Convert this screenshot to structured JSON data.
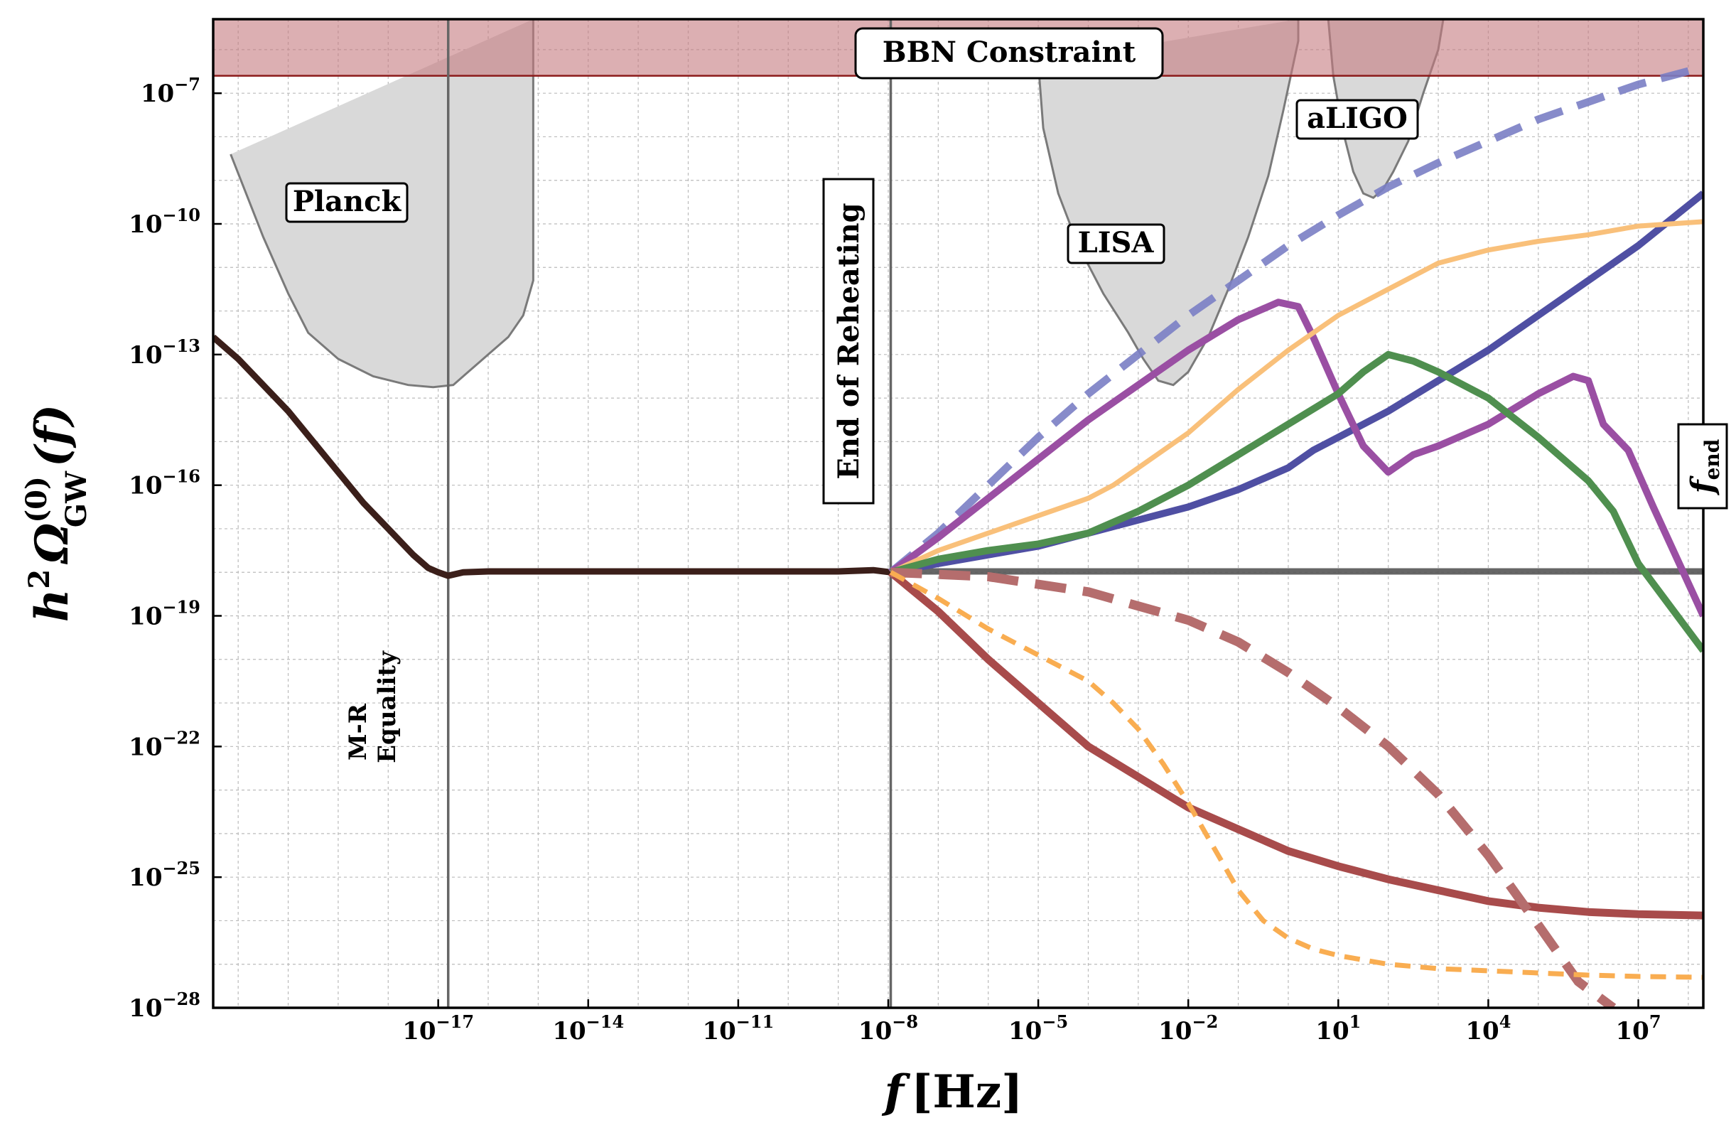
{
  "chart_data": {
    "type": "line",
    "title": "",
    "xlabel": "f [Hz]",
    "xlabel_parts": {
      "symbol": "f",
      "unit": "[Hz]"
    },
    "ylabel": "h² Ω_GW^(0)(f)",
    "ylabel_parts": {
      "h": "h",
      "h_exp": "2",
      "omega": "Ω",
      "sup": "(0)",
      "sub": "GW",
      "arg": "(f)"
    },
    "x_scale": "log10",
    "y_scale": "log10",
    "xlim_log10": [
      -21.5,
      8.3
    ],
    "ylim_log10": [
      -28,
      -5.3
    ],
    "grid": true,
    "x_ticks": [
      {
        "value": -17,
        "base": "10",
        "exp": "−17"
      },
      {
        "value": -14,
        "base": "10",
        "exp": "−14"
      },
      {
        "value": -11,
        "base": "10",
        "exp": "−11"
      },
      {
        "value": -8,
        "base": "10",
        "exp": "−8"
      },
      {
        "value": -5,
        "base": "10",
        "exp": "−5"
      },
      {
        "value": -2,
        "base": "10",
        "exp": "−2"
      },
      {
        "value": 1,
        "base": "10",
        "exp": "1"
      },
      {
        "value": 4,
        "base": "10",
        "exp": "4"
      },
      {
        "value": 7,
        "base": "10",
        "exp": "7"
      }
    ],
    "y_ticks": [
      {
        "value": -7,
        "base": "10",
        "exp": "−7"
      },
      {
        "value": -10,
        "base": "10",
        "exp": "−10"
      },
      {
        "value": -13,
        "base": "10",
        "exp": "−13"
      },
      {
        "value": -16,
        "base": "10",
        "exp": "−16"
      },
      {
        "value": -19,
        "base": "10",
        "exp": "−19"
      },
      {
        "value": -22,
        "base": "10",
        "exp": "−22"
      },
      {
        "value": -25,
        "base": "10",
        "exp": "−25"
      },
      {
        "value": -28,
        "base": "10",
        "exp": "−28"
      }
    ],
    "bbn": {
      "label": "BBN Constraint",
      "y_min_log10": -6.6,
      "fill": "#c47a7f",
      "edge": "#8b1a1a"
    },
    "vlines": [
      {
        "name": "M-R Equality",
        "x": -16.8
      },
      {
        "name": "End of Reheating",
        "x": -7.95
      }
    ],
    "sensitivity_regions": [
      {
        "name": "Planck",
        "x": [
          -21.15,
          -20.5,
          -20.0,
          -19.6,
          -19.0,
          -18.3,
          -17.6,
          -17.1,
          -16.7,
          -16.4,
          -16.0,
          -15.6,
          -15.3,
          -15.1,
          -15.1
        ],
        "y": [
          -8.4,
          -10.3,
          -11.6,
          -12.5,
          -13.1,
          -13.5,
          -13.7,
          -13.75,
          -13.7,
          -13.4,
          -13.0,
          -12.6,
          -12.1,
          -11.3,
          -5.3
        ]
      },
      {
        "name": "LISA",
        "x": [
          -5.0,
          -4.9,
          -4.6,
          -4.2,
          -3.7,
          -3.2,
          -2.9,
          -2.6,
          -2.3,
          -2.0,
          -1.6,
          -1.2,
          -0.8,
          -0.4,
          -0.1,
          0.2,
          0.2
        ],
        "y": [
          -6.3,
          -7.8,
          -9.3,
          -10.5,
          -11.6,
          -12.5,
          -13.1,
          -13.6,
          -13.7,
          -13.4,
          -12.6,
          -11.5,
          -10.3,
          -8.9,
          -7.4,
          -5.8,
          -5.3
        ]
      },
      {
        "name": "aLIGO",
        "x": [
          0.8,
          0.9,
          1.1,
          1.3,
          1.5,
          1.7,
          1.9,
          2.1,
          2.4,
          2.7,
          3.0,
          3.1
        ],
        "y": [
          -5.3,
          -6.6,
          -7.9,
          -8.8,
          -9.3,
          -9.4,
          -9.2,
          -8.8,
          -8.1,
          -7.0,
          -6.0,
          -5.3
        ]
      }
    ],
    "series": [
      {
        "name": "low-frequency common",
        "color": "#3b1f1a",
        "width": 9,
        "dash": "",
        "x": [
          -21.5,
          -21.0,
          -20.5,
          -20.0,
          -19.5,
          -19.0,
          -18.5,
          -18.0,
          -17.5,
          -17.2,
          -17.0,
          -16.8,
          -16.5,
          -16.0,
          -15.0,
          -12.0,
          -9.0,
          -8.3,
          -7.95
        ],
        "y": [
          -12.6,
          -13.1,
          -13.7,
          -14.3,
          -15.0,
          -15.7,
          -16.4,
          -17.0,
          -17.6,
          -17.9,
          -18.0,
          -18.08,
          -18.0,
          -17.98,
          -17.98,
          -17.98,
          -17.98,
          -17.95,
          -18.0
        ]
      },
      {
        "name": "dark grey flat",
        "color": "#555555",
        "width": 9,
        "dash": "",
        "x": [
          -7.95,
          8.3
        ],
        "y": [
          -17.98,
          -17.98
        ]
      },
      {
        "name": "blue dashed",
        "color": "#7a7ec4",
        "width": 11,
        "dash": "40,22",
        "x": [
          -7.95,
          -7.0,
          -6.0,
          -5.0,
          -4.0,
          -3.0,
          -2.0,
          -1.0,
          0.0,
          1.0,
          2.0,
          3.0,
          4.0,
          5.0,
          6.0,
          7.0,
          8.3
        ],
        "y": [
          -18.0,
          -17.1,
          -16.0,
          -14.9,
          -13.9,
          -13.0,
          -12.1,
          -11.3,
          -10.5,
          -9.8,
          -9.15,
          -8.6,
          -8.1,
          -7.6,
          -7.2,
          -6.8,
          -6.4
        ]
      },
      {
        "name": "blue solid",
        "color": "#4f4fa3",
        "width": 10,
        "dash": "",
        "x": [
          -7.95,
          -7.0,
          -6.0,
          -5.0,
          -4.0,
          -3.0,
          -2.0,
          -1.0,
          0.0,
          0.5,
          1.0,
          2.0,
          3.0,
          4.0,
          5.0,
          6.0,
          7.0,
          8.3
        ],
        "y": [
          -18.0,
          -17.8,
          -17.6,
          -17.4,
          -17.1,
          -16.8,
          -16.5,
          -16.1,
          -15.6,
          -15.2,
          -14.9,
          -14.3,
          -13.6,
          -12.9,
          -12.1,
          -11.3,
          -10.5,
          -9.3
        ]
      },
      {
        "name": "purple",
        "color": "#9a4fa3",
        "width": 10,
        "dash": "",
        "x": [
          -7.95,
          -7.0,
          -6.0,
          -5.0,
          -4.0,
          -3.0,
          -2.0,
          -1.0,
          -0.2,
          0.2,
          0.5,
          1.0,
          1.5,
          2.0,
          2.5,
          3.0,
          4.0,
          5.0,
          5.7,
          6.0,
          6.3,
          6.8,
          7.3,
          8.3
        ],
        "y": [
          -18.0,
          -17.2,
          -16.3,
          -15.4,
          -14.5,
          -13.7,
          -12.9,
          -12.2,
          -11.8,
          -11.9,
          -12.6,
          -13.9,
          -15.1,
          -15.7,
          -15.3,
          -15.1,
          -14.6,
          -13.9,
          -13.5,
          -13.6,
          -14.6,
          -15.2,
          -16.5,
          -19.0
        ]
      },
      {
        "name": "light orange solid",
        "color": "#f9c07a",
        "width": 7,
        "dash": "",
        "x": [
          -7.95,
          -7.0,
          -6.0,
          -5.0,
          -4.0,
          -3.5,
          -3.0,
          -2.0,
          -1.0,
          0.0,
          1.0,
          2.0,
          3.0,
          4.0,
          5.0,
          6.0,
          7.0,
          8.3
        ],
        "y": [
          -18.0,
          -17.5,
          -17.1,
          -16.7,
          -16.3,
          -16.0,
          -15.6,
          -14.8,
          -13.8,
          -12.9,
          -12.1,
          -11.5,
          -10.9,
          -10.6,
          -10.4,
          -10.25,
          -10.05,
          -9.95
        ]
      },
      {
        "name": "green",
        "color": "#4f8f4f",
        "width": 10,
        "dash": "",
        "x": [
          -7.95,
          -7.0,
          -6.0,
          -5.0,
          -4.0,
          -3.0,
          -2.0,
          -1.0,
          0.0,
          1.0,
          1.5,
          2.0,
          2.5,
          3.0,
          4.0,
          5.0,
          6.0,
          6.5,
          7.0,
          8.3
        ],
        "y": [
          -18.0,
          -17.7,
          -17.5,
          -17.35,
          -17.1,
          -16.6,
          -16.0,
          -15.3,
          -14.6,
          -13.9,
          -13.4,
          -13.0,
          -13.15,
          -13.4,
          -14.0,
          -14.9,
          -15.9,
          -16.6,
          -17.8,
          -19.8
        ]
      },
      {
        "name": "red solid",
        "color": "#a84b4b",
        "width": 11,
        "dash": "",
        "x": [
          -7.95,
          -7.0,
          -6.0,
          -5.0,
          -4.0,
          -3.0,
          -2.0,
          -1.0,
          0.0,
          1.0,
          2.0,
          3.0,
          4.0,
          5.0,
          6.0,
          7.0,
          8.3
        ],
        "y": [
          -18.0,
          -18.9,
          -20.0,
          -21.0,
          -22.0,
          -22.7,
          -23.4,
          -23.9,
          -24.4,
          -24.75,
          -25.05,
          -25.3,
          -25.55,
          -25.7,
          -25.8,
          -25.85,
          -25.88
        ]
      },
      {
        "name": "red dashed",
        "color": "#b56d6d",
        "width": 13,
        "dash": "44,24",
        "x": [
          -7.95,
          -6.0,
          -4.0,
          -2.0,
          -1.0,
          0.0,
          1.0,
          2.0,
          3.0,
          4.0,
          5.0,
          5.8,
          6.5
        ],
        "y": [
          -18.0,
          -18.1,
          -18.45,
          -19.1,
          -19.6,
          -20.3,
          -21.1,
          -22.0,
          -23.1,
          -24.5,
          -26.1,
          -27.4,
          -28.0
        ]
      },
      {
        "name": "orange dashed",
        "color": "#f9ad51",
        "width": 7,
        "dash": "22,14",
        "x": [
          -7.95,
          -7.0,
          -6.0,
          -5.0,
          -4.0,
          -3.5,
          -3.0,
          -2.5,
          -2.0,
          -1.5,
          -1.0,
          -0.5,
          0.0,
          0.5,
          1.0,
          1.5,
          2.0,
          3.0,
          4.0,
          5.0,
          6.0,
          7.0,
          8.3
        ],
        "y": [
          -18.0,
          -18.6,
          -19.3,
          -19.9,
          -20.5,
          -21.0,
          -21.6,
          -22.4,
          -23.3,
          -24.3,
          -25.3,
          -26.0,
          -26.4,
          -26.65,
          -26.8,
          -26.9,
          -27.0,
          -27.1,
          -27.15,
          -27.2,
          -27.25,
          -27.28,
          -27.3
        ]
      }
    ],
    "annotations": {
      "bbn": "BBN Constraint",
      "planck": "Planck",
      "lisa": "LISA",
      "aligo": "aLIGO",
      "reheating": "End of Reheating",
      "mr_line1": "M-R",
      "mr_line2": "Equality",
      "fend_symbol": "f",
      "fend_sub": "end"
    },
    "colors": {
      "reheating_text": "#1a1a8c",
      "region_fill": "#d9d9d9",
      "region_edge": "#7a7a7a",
      "grid": "#bbbbbb"
    }
  }
}
